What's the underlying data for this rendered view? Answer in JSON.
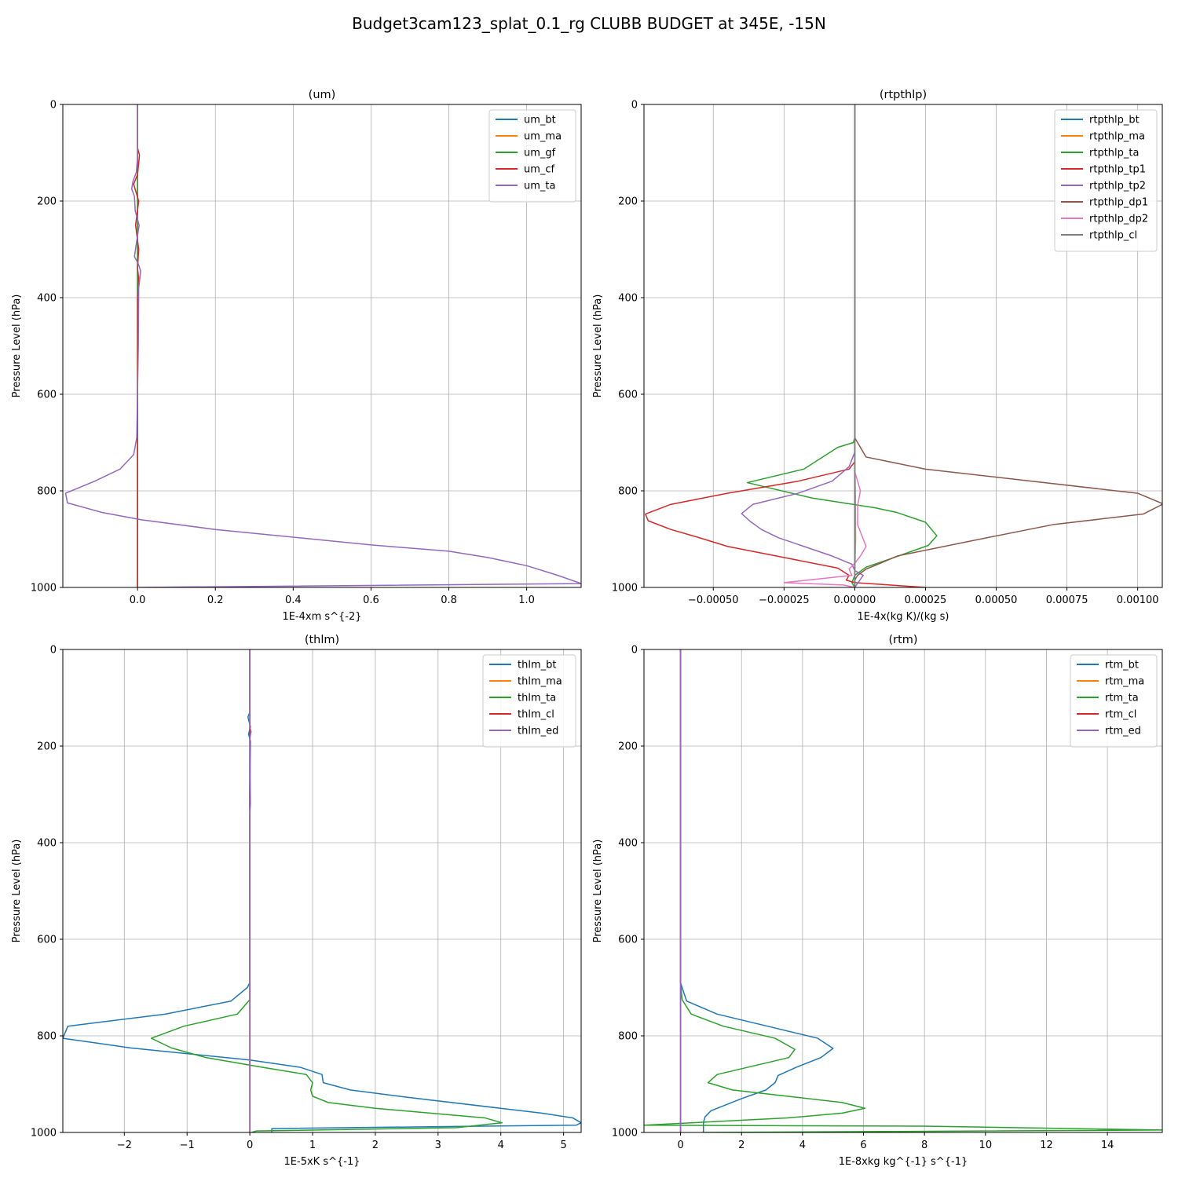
{
  "figure": {
    "title": "Budget3cam123_splat_0.1_rg CLUBB BUDGET at 345E, -15N"
  },
  "colors": [
    "#1f77b4",
    "#ff7f0e",
    "#2ca02c",
    "#d62728",
    "#9467bd",
    "#8c564b",
    "#e377c2",
    "#7f7f7f"
  ],
  "chart_data": [
    {
      "type": "line",
      "title": "(um)",
      "xlabel": "1E-4xm s^{-2}",
      "ylabel": "Pressure Level (hPa)",
      "xlim": [
        -0.192,
        1.14
      ],
      "ylim": [
        1000,
        0
      ],
      "xticks": [
        0.0,
        0.2,
        0.4,
        0.6,
        0.8,
        1.0
      ],
      "xtick_labels": [
        "0.0",
        "0.2",
        "0.4",
        "0.6",
        "0.8",
        "1.0"
      ],
      "yticks": [
        0,
        200,
        400,
        600,
        800,
        1000
      ],
      "grid": true,
      "legend": "upper right",
      "series": [
        {
          "name": "um_bt",
          "color": "#1f77b4",
          "x": [
            0,
            0
          ],
          "y": [
            0,
            1000
          ]
        },
        {
          "name": "um_ma",
          "color": "#ff7f0e",
          "x": [
            0,
            0
          ],
          "y": [
            0,
            1000
          ]
        },
        {
          "name": "um_gf",
          "color": "#2ca02c",
          "x": [
            0,
            0
          ],
          "y": [
            0,
            1000
          ]
        },
        {
          "name": "um_cf",
          "color": "#d62728",
          "x": [
            0,
            0,
            0.005,
            0,
            -0.01,
            0.003,
            -0.005,
            0.003,
            0,
            0.003,
            0,
            0,
            0,
            0,
            0
          ],
          "y": [
            0,
            90,
            105,
            145,
            165,
            200,
            250,
            300,
            340,
            360,
            400,
            500,
            700,
            800,
            1000
          ]
        },
        {
          "name": "um_ta",
          "color": "#9467bd",
          "x": [
            0,
            0,
            -0.003,
            -0.012,
            -0.015,
            -0.008,
            -0.006,
            0.004,
            -0.008,
            0.002,
            0.008,
            0.003,
            0.002,
            -0.002,
            -0.01,
            -0.045,
            -0.11,
            -0.185,
            -0.18,
            -0.09,
            0.01,
            0.2,
            0.6,
            0.8,
            0.9,
            1.0,
            1.08,
            1.14,
            0.0
          ],
          "y": [
            0,
            110,
            140,
            160,
            175,
            190,
            220,
            250,
            315,
            330,
            345,
            380,
            500,
            690,
            725,
            755,
            780,
            805,
            825,
            845,
            860,
            880,
            912,
            925,
            938,
            955,
            975,
            992,
            1000
          ]
        }
      ]
    },
    {
      "type": "line",
      "title": "(rtpthlp)",
      "xlabel": "1E-4x(kg K)/(kg s)",
      "ylabel": "Pressure Level (hPa)",
      "xlim": [
        -0.000745,
        0.001087
      ],
      "ylim": [
        1000,
        0
      ],
      "xticks": [
        -0.0005,
        -0.00025,
        0,
        0.00025,
        0.0005,
        0.00075,
        0.001
      ],
      "xtick_labels": [
        "−0.00050",
        "−0.00025",
        "0.00000",
        "0.00025",
        "0.00050",
        "0.00075",
        "0.00100"
      ],
      "yticks": [
        0,
        200,
        400,
        600,
        800,
        1000
      ],
      "grid": true,
      "legend": "upper right",
      "series": [
        {
          "name": "rtpthlp_bt",
          "color": "#1f77b4",
          "x": [
            0,
            0,
            0
          ],
          "y": [
            0,
            990,
            1000
          ]
        },
        {
          "name": "rtpthlp_ma",
          "color": "#ff7f0e",
          "x": [
            0,
            0,
            2e-06,
            3e-06,
            0,
            0
          ],
          "y": [
            0,
            700,
            800,
            900,
            980,
            1000
          ]
        },
        {
          "name": "rtpthlp_ta",
          "color": "#2ca02c",
          "x": [
            0,
            0,
            -5e-06,
            -6e-05,
            -0.00018,
            -0.00038,
            -0.00015,
            7e-05,
            0.00015,
            0.00025,
            0.00029,
            0.00026,
            0.00013,
            4e-05,
            0.0,
            -1e-05,
            0.0
          ],
          "y": [
            0,
            690,
            700,
            710,
            755,
            783,
            815,
            835,
            845,
            865,
            893,
            913,
            940,
            958,
            975,
            990,
            1000
          ]
        },
        {
          "name": "rtpthlp_tp1",
          "color": "#d62728",
          "x": [
            0,
            0,
            -2e-05,
            -0.0002,
            -0.00045,
            -0.00065,
            -0.00074,
            -0.00073,
            -0.00065,
            -0.00055,
            -0.00045,
            -0.00025,
            -6e-05,
            -2e-05,
            -3e-05,
            0.0,
            0.00025
          ],
          "y": [
            0,
            740,
            755,
            780,
            805,
            828,
            848,
            862,
            880,
            897,
            915,
            938,
            960,
            975,
            985,
            990,
            1000
          ]
        },
        {
          "name": "rtpthlp_tp2",
          "color": "#9467bd",
          "x": [
            0,
            0,
            -2e-05,
            -8e-05,
            -0.0002,
            -0.00036,
            -0.0004,
            -0.00037,
            -0.00033,
            -0.00027,
            -0.00018,
            -8e-05,
            -1e-05,
            0.0,
            3e-05,
            0.0
          ],
          "y": [
            0,
            720,
            750,
            780,
            805,
            828,
            847,
            863,
            880,
            897,
            915,
            935,
            952,
            965,
            975,
            1000
          ]
        },
        {
          "name": "rtpthlp_dp1",
          "color": "#8c564b",
          "x": [
            0,
            0,
            4e-05,
            0.00025,
            0.001,
            0.00109,
            0.00102,
            0.0007,
            0.0004,
            0.00015,
            9e-05,
            4e-05,
            1e-05,
            0.0,
            0.0
          ],
          "y": [
            0,
            690,
            730,
            755,
            805,
            827,
            848,
            870,
            905,
            935,
            950,
            962,
            975,
            985,
            1000
          ]
        },
        {
          "name": "rtpthlp_dp2",
          "color": "#e377c2",
          "x": [
            0,
            0,
            1e-05,
            2e-05,
            1e-05,
            1e-05,
            3e-05,
            4e-05,
            2e-05,
            0.0,
            -2e-05,
            -1e-05,
            -0.00025,
            -4e-05,
            0.0
          ],
          "y": [
            0,
            760,
            780,
            800,
            830,
            870,
            900,
            915,
            935,
            950,
            962,
            975,
            990,
            995,
            1000
          ]
        },
        {
          "name": "rtpthlp_cl",
          "color": "#7f7f7f",
          "x": [
            0,
            0
          ],
          "y": [
            0,
            1000
          ]
        }
      ]
    },
    {
      "type": "line",
      "title": "(thlm)",
      "xlabel": "1E-5xK s^{-1}",
      "ylabel": "Pressure Level (hPa)",
      "xlim": [
        -2.98,
        5.28
      ],
      "ylim": [
        1000,
        0
      ],
      "xticks": [
        -2,
        -1,
        0,
        1,
        2,
        3,
        4,
        5
      ],
      "xtick_labels": [
        "−2",
        "−1",
        "0",
        "1",
        "2",
        "3",
        "4",
        "5"
      ],
      "yticks": [
        0,
        200,
        400,
        600,
        800,
        1000
      ],
      "grid": true,
      "legend": "upper right",
      "series": [
        {
          "name": "thlm_bt",
          "color": "#1f77b4",
          "x": [
            0,
            0,
            -0.03,
            0.01,
            -0.02,
            0.01,
            0,
            0,
            0,
            -0.04,
            -0.3,
            -1.35,
            -2.9,
            -2.98,
            -1.9,
            0,
            0.8,
            1.15,
            1.17,
            1.6,
            2.5,
            4.65,
            5.15,
            5.28,
            5.2,
            3.0,
            0.35,
            0.35
          ],
          "y": [
            0,
            130,
            140,
            160,
            175,
            190,
            300,
            400,
            690,
            700,
            728,
            755,
            780,
            805,
            825,
            850,
            865,
            880,
            897,
            912,
            927,
            960,
            970,
            980,
            985,
            988,
            992,
            1000
          ]
        },
        {
          "name": "thlm_ma",
          "color": "#ff7f0e",
          "x": [
            0,
            0
          ],
          "y": [
            0,
            1000
          ]
        },
        {
          "name": "thlm_ta",
          "color": "#2ca02c",
          "x": [
            0,
            0,
            0,
            -0.2,
            -1.05,
            -1.57,
            -1.25,
            -0.7,
            0.2,
            0.9,
            1.0,
            0.97,
            1.0,
            1.25,
            2.0,
            3.75,
            4.02,
            3.3,
            0.1,
            0.03
          ],
          "y": [
            0,
            690,
            725,
            755,
            780,
            805,
            825,
            845,
            865,
            880,
            897,
            912,
            925,
            938,
            950,
            970,
            980,
            990,
            997,
            1000
          ]
        },
        {
          "name": "thlm_cl",
          "color": "#d62728",
          "x": [
            0,
            0
          ],
          "y": [
            0,
            1000
          ]
        },
        {
          "name": "thlm_ed",
          "color": "#9467bd",
          "x": [
            0,
            0,
            0.02,
            0,
            0.01,
            0,
            0
          ],
          "y": [
            0,
            160,
            170,
            185,
            320,
            340,
            1000
          ]
        }
      ]
    },
    {
      "type": "line",
      "title": "(rtm)",
      "xlabel": "1E-8xkg kg^{-1} s^{-1}",
      "ylabel": "Pressure Level (hPa)",
      "xlim": [
        -1.2,
        15.8
      ],
      "ylim": [
        1000,
        0
      ],
      "xticks": [
        0,
        2,
        4,
        6,
        8,
        10,
        12,
        14
      ],
      "xtick_labels": [
        "0",
        "2",
        "4",
        "6",
        "8",
        "10",
        "12",
        "14"
      ],
      "yticks": [
        0,
        200,
        400,
        600,
        800,
        1000
      ],
      "grid": true,
      "legend": "upper right",
      "series": [
        {
          "name": "rtm_bt",
          "color": "#1f77b4",
          "x": [
            0,
            0,
            0.05,
            0.2,
            1.2,
            4.5,
            5.0,
            4.6,
            3.8,
            3.2,
            3.1,
            2.8,
            2.0,
            1.0,
            0.8,
            0.75,
            0.75
          ],
          "y": [
            0,
            690,
            700,
            728,
            755,
            805,
            826,
            845,
            865,
            882,
            897,
            912,
            930,
            955,
            968,
            980,
            1000
          ]
        },
        {
          "name": "rtm_ma",
          "color": "#ff7f0e",
          "x": [
            0,
            0
          ],
          "y": [
            0,
            1000
          ]
        },
        {
          "name": "rtm_ta",
          "color": "#2ca02c",
          "x": [
            0,
            0,
            0.05,
            0.35,
            1.4,
            3.1,
            3.75,
            3.55,
            1.2,
            0.9,
            1.7,
            5.3,
            6.05,
            5.3,
            3.5,
            -1.2,
            8.0,
            15.8,
            0.7
          ],
          "y": [
            0,
            690,
            725,
            755,
            780,
            805,
            828,
            845,
            880,
            897,
            912,
            938,
            950,
            960,
            970,
            985,
            987,
            995,
            1000
          ]
        },
        {
          "name": "rtm_cl",
          "color": "#d62728",
          "x": [
            0,
            0
          ],
          "y": [
            0,
            1000
          ]
        },
        {
          "name": "rtm_ed",
          "color": "#9467bd",
          "x": [
            0,
            0
          ],
          "y": [
            0,
            1000
          ]
        }
      ]
    }
  ]
}
